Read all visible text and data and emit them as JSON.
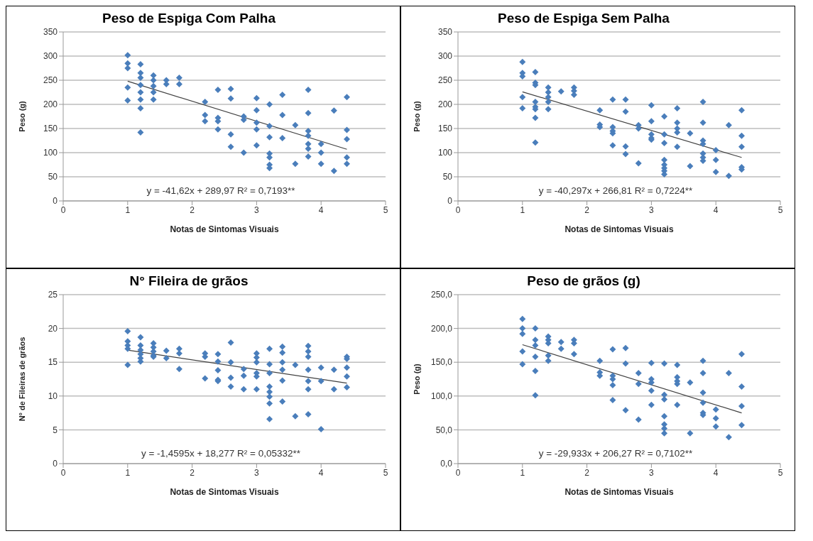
{
  "chart_data": [
    {
      "type": "scatter",
      "title": "Peso de Espiga Com Palha",
      "xlabel": "Notas de Sintomas Visuais",
      "ylabel": "Peso (g)",
      "xlim": [
        0,
        5
      ],
      "xticks": [
        0,
        1,
        2,
        3,
        4,
        5
      ],
      "ylim": [
        0,
        350
      ],
      "yticks": [
        0,
        50,
        100,
        150,
        200,
        250,
        300,
        350
      ],
      "grid": "y",
      "annotations": [
        "y = -41,62x + 289,97 R² = 0,7193**"
      ],
      "series": [
        {
          "marker": "diamond",
          "color": "#4a7ebb",
          "x": [
            1,
            1,
            1,
            1,
            1,
            1.2,
            1.2,
            1.2,
            1.2,
            1.2,
            1.2,
            1.2,
            1.2,
            1.4,
            1.4,
            1.4,
            1.4,
            1.4,
            1.6,
            1.6,
            1.8,
            1.8,
            2.2,
            2.2,
            2.2,
            2.4,
            2.4,
            2.4,
            2.4,
            2.6,
            2.6,
            2.6,
            2.6,
            2.8,
            2.8,
            2.8,
            3,
            3,
            3,
            3,
            3,
            3.2,
            3.2,
            3.2,
            3.2,
            3.2,
            3.2,
            3.2,
            3.4,
            3.4,
            3.4,
            3.6,
            3.6,
            3.8,
            3.8,
            3.8,
            3.8,
            3.8,
            3.8,
            3.8,
            4,
            4,
            4,
            4.2,
            4.2,
            4.4,
            4.4,
            4.4,
            4.4,
            4.4
          ],
          "values": [
            302,
            285,
            275,
            235,
            208,
            283,
            265,
            255,
            240,
            225,
            210,
            192,
            142,
            260,
            250,
            238,
            225,
            210,
            250,
            242,
            255,
            242,
            205,
            178,
            165,
            230,
            172,
            165,
            148,
            232,
            212,
            138,
            112,
            175,
            168,
            100,
            213,
            188,
            162,
            148,
            115,
            200,
            155,
            132,
            98,
            90,
            75,
            68,
            220,
            178,
            130,
            157,
            77,
            230,
            182,
            145,
            135,
            118,
            108,
            92,
            118,
            100,
            77,
            187,
            62,
            215,
            147,
            128,
            90,
            77
          ]
        },
        {
          "type": "line",
          "color": "#404040",
          "x": [
            1,
            4.4
          ],
          "values": [
            248,
            107
          ]
        }
      ]
    },
    {
      "type": "scatter",
      "title": "Peso de Espiga Sem Palha",
      "xlabel": "Notas de Sintomas Visuais",
      "ylabel": "Peso (g)",
      "xlim": [
        0,
        5
      ],
      "xticks": [
        0,
        1,
        2,
        3,
        4,
        5
      ],
      "ylim": [
        0,
        350
      ],
      "yticks": [
        0,
        50,
        100,
        150,
        200,
        250,
        300,
        350
      ],
      "grid": "y",
      "annotations": [
        "y = -40,297x + 266,81 R² = 0,7224**"
      ],
      "series": [
        {
          "marker": "diamond",
          "color": "#4a7ebb",
          "x": [
            1,
            1,
            1,
            1,
            1,
            1.2,
            1.2,
            1.2,
            1.2,
            1.2,
            1.2,
            1.2,
            1.2,
            1.4,
            1.4,
            1.4,
            1.4,
            1.4,
            1.6,
            1.8,
            1.8,
            1.8,
            2.2,
            2.2,
            2.2,
            2.4,
            2.4,
            2.4,
            2.4,
            2.4,
            2.6,
            2.6,
            2.6,
            2.6,
            2.8,
            2.8,
            2.8,
            3,
            3,
            3,
            3,
            3,
            3.2,
            3.2,
            3.2,
            3.2,
            3.2,
            3.2,
            3.2,
            3.2,
            3.4,
            3.4,
            3.4,
            3.4,
            3.4,
            3.6,
            3.6,
            3.8,
            3.8,
            3.8,
            3.8,
            3.8,
            3.8,
            3.8,
            4,
            4,
            4,
            4.2,
            4.2,
            4.4,
            4.4,
            4.4,
            4.4,
            4.4
          ],
          "values": [
            288,
            265,
            258,
            215,
            192,
            267,
            245,
            240,
            205,
            195,
            190,
            172,
            121,
            235,
            225,
            215,
            205,
            190,
            227,
            235,
            228,
            220,
            188,
            158,
            153,
            210,
            153,
            145,
            140,
            115,
            210,
            185,
            113,
            97,
            157,
            150,
            78,
            198,
            165,
            138,
            130,
            127,
            175,
            138,
            120,
            85,
            75,
            68,
            62,
            55,
            192,
            162,
            150,
            142,
            112,
            140,
            72,
            205,
            162,
            125,
            118,
            98,
            90,
            83,
            105,
            85,
            60,
            157,
            52,
            188,
            135,
            112,
            70,
            65
          ]
        },
        {
          "type": "line",
          "color": "#404040",
          "x": [
            1,
            4.4
          ],
          "values": [
            226,
            90
          ]
        }
      ]
    },
    {
      "type": "scatter",
      "title": "N° Fileira de grãos",
      "xlabel": "Notas de Sintomas Visuais",
      "ylabel": "N° de Fileiras de grãos",
      "xlim": [
        0,
        5
      ],
      "xticks": [
        0,
        1,
        2,
        3,
        4,
        5
      ],
      "ylim": [
        0,
        25
      ],
      "yticks": [
        0,
        5,
        10,
        15,
        20,
        25
      ],
      "grid": "y",
      "annotations": [
        "y = -1,4595x + 18,277 R² = 0,05332**"
      ],
      "series": [
        {
          "marker": "diamond",
          "color": "#4a7ebb",
          "x": [
            1,
            1,
            1,
            1,
            1,
            1.2,
            1.2,
            1.2,
            1.2,
            1.2,
            1.2,
            1.4,
            1.4,
            1.4,
            1.4,
            1.4,
            1.6,
            1.6,
            1.8,
            1.8,
            1.8,
            2.2,
            2.2,
            2.2,
            2.4,
            2.4,
            2.4,
            2.4,
            2.4,
            2.6,
            2.6,
            2.6,
            2.6,
            2.8,
            2.8,
            2.8,
            3,
            3,
            3,
            3,
            3,
            3,
            3.2,
            3.2,
            3.2,
            3.2,
            3.2,
            3.2,
            3.2,
            3.2,
            3.4,
            3.4,
            3.4,
            3.4,
            3.4,
            3.4,
            3.6,
            3.6,
            3.8,
            3.8,
            3.8,
            3.8,
            3.8,
            3.8,
            3.8,
            4,
            4,
            4,
            4.2,
            4.2,
            4.4,
            4.4,
            4.4,
            4.4,
            4.4
          ],
          "values": [
            19.6,
            18.1,
            17.5,
            17,
            14.6,
            18.7,
            17.5,
            16.8,
            16.2,
            15.6,
            15.1,
            17.8,
            17.2,
            16.6,
            16,
            15.8,
            16.7,
            15.6,
            17,
            16.3,
            14,
            16.3,
            15.8,
            12.6,
            16.2,
            15.1,
            13.8,
            12.4,
            12.2,
            17.9,
            15,
            12.7,
            11.4,
            14,
            13,
            11,
            16.3,
            15.7,
            15,
            13.4,
            12.9,
            11,
            17,
            14.7,
            13.4,
            11.4,
            10.6,
            9.9,
            8.9,
            6.6,
            17.3,
            16.4,
            15,
            13.9,
            12.3,
            9.2,
            14.6,
            7,
            17.4,
            16.6,
            15.8,
            13.9,
            12.2,
            11,
            7.3,
            14.2,
            12.2,
            5.1,
            13.9,
            11,
            15.8,
            15.5,
            14.2,
            12.9,
            11.3
          ]
        },
        {
          "type": "line",
          "color": "#404040",
          "x": [
            1,
            4.4
          ],
          "values": [
            16.8,
            11.9
          ]
        }
      ]
    },
    {
      "type": "scatter",
      "title": "Peso de grãos (g)",
      "xlabel": "Notas de Sintomas Visuais",
      "ylabel": "Peso (g)",
      "xlim": [
        0,
        5
      ],
      "xticks": [
        0,
        1,
        2,
        3,
        4,
        5
      ],
      "ylim": [
        0,
        250
      ],
      "yticks": [
        {
          "value": 0,
          "label": "0,0"
        },
        {
          "value": 50,
          "label": "50,0"
        },
        {
          "value": 100,
          "label": "100,0"
        },
        {
          "value": 150,
          "label": "150,0"
        },
        {
          "value": 200,
          "label": "200,0"
        },
        {
          "value": 250,
          "label": "250,0"
        }
      ],
      "grid": "y",
      "annotations": [
        "y = -29,933x + 206,27 R² = 0,7102**"
      ],
      "series": [
        {
          "marker": "diamond",
          "color": "#4a7ebb",
          "x": [
            1,
            1,
            1,
            1,
            1,
            1.2,
            1.2,
            1.2,
            1.2,
            1.2,
            1.2,
            1.4,
            1.4,
            1.4,
            1.4,
            1.4,
            1.6,
            1.6,
            1.8,
            1.8,
            1.8,
            2.2,
            2.2,
            2.2,
            2.4,
            2.4,
            2.4,
            2.4,
            2.4,
            2.6,
            2.6,
            2.6,
            2.8,
            2.8,
            2.8,
            3,
            3,
            3,
            3,
            3,
            3.2,
            3.2,
            3.2,
            3.2,
            3.2,
            3.2,
            3.2,
            3.4,
            3.4,
            3.4,
            3.4,
            3.4,
            3.6,
            3.6,
            3.8,
            3.8,
            3.8,
            3.8,
            3.8,
            3.8,
            4,
            4,
            4,
            4.2,
            4.2,
            4.4,
            4.4,
            4.4,
            4.4
          ],
          "values": [
            214,
            200,
            192,
            166,
            147,
            200,
            183,
            175,
            158,
            137,
            101,
            188,
            183,
            178,
            160,
            152,
            180,
            170,
            183,
            178,
            162,
            152,
            135,
            130,
            169,
            130,
            125,
            116,
            94,
            171,
            148,
            79,
            134,
            118,
            65,
            149,
            125,
            120,
            108,
            87,
            148,
            102,
            95,
            70,
            58,
            52,
            45,
            146,
            128,
            122,
            118,
            87,
            120,
            45,
            152,
            134,
            105,
            90,
            75,
            72,
            80,
            67,
            55,
            134,
            39,
            162,
            114,
            85,
            57
          ]
        },
        {
          "type": "line",
          "color": "#404040",
          "x": [
            1,
            4.4
          ],
          "values": [
            176,
            75
          ]
        }
      ]
    }
  ]
}
